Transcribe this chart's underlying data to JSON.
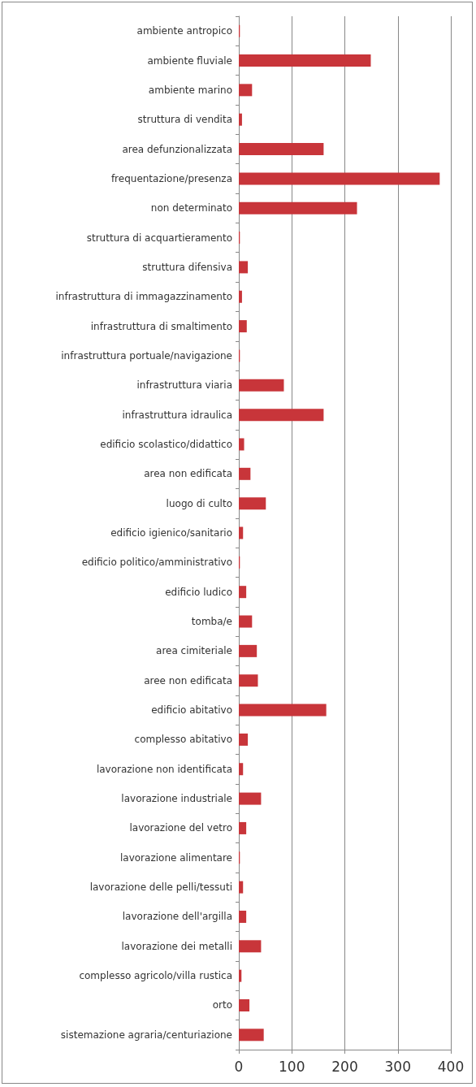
{
  "chart_data": {
    "type": "bar",
    "orientation": "horizontal",
    "categories": [
      "ambiente antropico",
      "ambiente fluviale",
      "ambiente marino",
      "struttura di vendita",
      "area defunzionalizzata",
      "frequentazione/presenza",
      "non determinato",
      "struttura di acquartieramento",
      "struttura difensiva",
      "infrastruttura di immagazzinamento",
      "infrastruttura di smaltimento",
      "infrastruttura portuale/navigazione",
      "infrastruttura viaria",
      "infrastruttura idraulica",
      "edificio scolastico/didattico",
      "area non edificata",
      "luogo di culto",
      "edificio igienico/sanitario",
      "edificio politico/amministrativo",
      "edificio ludico",
      "tomba/e",
      "area cimiteriale",
      "aree non edificata",
      "edificio abitativo",
      "complesso abitativo",
      "lavorazione non identificata",
      "lavorazione industriale",
      "lavorazione del vetro",
      "lavorazione alimentare",
      "lavorazione delle pelli/tessuti",
      "lavorazione dell'argilla",
      "lavorazione dei metalli",
      "complesso agricolo/villa rustica",
      "orto",
      "sistemazione agraria/centuriazione"
    ],
    "values": [
      2,
      249,
      25,
      6,
      160,
      379,
      223,
      2,
      17,
      6,
      15,
      2,
      85,
      160,
      10,
      22,
      51,
      8,
      2,
      14,
      25,
      34,
      36,
      165,
      17,
      8,
      42,
      14,
      2,
      8,
      14,
      42,
      5,
      20,
      47
    ],
    "color": "#c8353a",
    "xlim": [
      0,
      400
    ],
    "xticks": [
      0,
      100,
      200,
      300,
      400
    ],
    "grid": "x"
  }
}
